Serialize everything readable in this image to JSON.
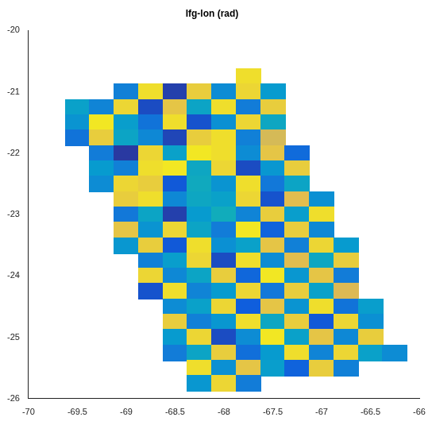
{
  "chart_data": {
    "type": "heatmap",
    "title": "Ifg-lon (rad)",
    "x": [
      -69.75,
      -69.5,
      -69.25,
      -69.0,
      -68.75,
      -68.5,
      -68.25,
      -68.0,
      -67.75,
      -67.5,
      -67.25,
      -67.0,
      -66.75,
      -66.5,
      -66.25
    ],
    "y": [
      -20.75,
      -21.0,
      -21.25,
      -21.5,
      -21.75,
      -22.0,
      -22.25,
      -22.5,
      -22.75,
      -23.0,
      -23.25,
      -23.5,
      -23.75,
      -24.0,
      -24.25,
      -24.5,
      -24.75,
      -25.0,
      -25.25,
      -25.5,
      -25.75
    ],
    "cells": [
      [
        null,
        null,
        null,
        null,
        null,
        null,
        null,
        null,
        2.8,
        null,
        null,
        null,
        null,
        null,
        null
      ],
      [
        null,
        null,
        null,
        -1.5,
        2.8,
        -2.8,
        2.6,
        -1.2,
        2.7,
        -0.8,
        null,
        null,
        null,
        null,
        null
      ],
      [
        null,
        -0.6,
        -1.4,
        2.7,
        -2.6,
        2.5,
        -0.5,
        2.8,
        -1.6,
        2.6,
        null,
        null,
        null,
        null,
        null
      ],
      [
        null,
        -1.0,
        2.9,
        -0.7,
        -1.8,
        2.8,
        -2.5,
        -1.1,
        2.7,
        -0.4,
        null,
        null,
        null,
        null,
        null
      ],
      [
        null,
        -1.8,
        2.6,
        -0.5,
        -1.3,
        -2.7,
        2.6,
        2.8,
        -1.5,
        2.2,
        null,
        null,
        null,
        null,
        null
      ],
      [
        null,
        null,
        -1.6,
        -2.9,
        2.7,
        -0.6,
        2.9,
        2.8,
        -1.2,
        2.5,
        -2.0,
        null,
        null,
        null,
        null
      ],
      [
        null,
        null,
        -0.8,
        -1.5,
        2.8,
        2.9,
        -0.4,
        2.7,
        -2.6,
        -0.9,
        2.6,
        null,
        null,
        null,
        null
      ],
      [
        null,
        null,
        -1.2,
        2.7,
        2.6,
        -2.4,
        -0.3,
        -1.0,
        2.8,
        -1.7,
        -0.5,
        null,
        null,
        null,
        null
      ],
      [
        null,
        null,
        null,
        2.6,
        2.8,
        -1.3,
        -0.4,
        -0.6,
        2.7,
        -2.5,
        2.4,
        -1.1,
        null,
        null,
        null
      ],
      [
        null,
        null,
        null,
        -1.7,
        -0.5,
        -2.8,
        -0.8,
        -0.2,
        -1.4,
        2.6,
        -0.7,
        2.8,
        null,
        null,
        null
      ],
      [
        null,
        null,
        null,
        2.5,
        -1.0,
        2.7,
        -0.5,
        -1.6,
        2.9,
        -2.2,
        2.6,
        -1.3,
        null,
        null,
        null
      ],
      [
        null,
        null,
        null,
        -0.9,
        2.6,
        -2.4,
        2.8,
        -1.1,
        -0.6,
        2.5,
        -1.5,
        2.7,
        -0.8,
        null,
        null
      ],
      [
        null,
        null,
        null,
        null,
        -1.5,
        -0.7,
        2.7,
        -2.6,
        2.8,
        -1.2,
        2.4,
        -0.4,
        2.6,
        null,
        null
      ],
      [
        null,
        null,
        null,
        null,
        2.7,
        -1.3,
        -0.5,
        2.6,
        -2.1,
        2.9,
        -0.9,
        2.5,
        -1.6,
        null,
        null
      ],
      [
        null,
        null,
        null,
        null,
        -2.5,
        2.8,
        -1.4,
        -0.8,
        2.7,
        -1.7,
        2.6,
        -0.6,
        2.3,
        null,
        null
      ],
      [
        null,
        null,
        null,
        null,
        null,
        -1.2,
        -0.6,
        2.7,
        -2.3,
        2.5,
        -1.0,
        2.8,
        -1.8,
        -0.7,
        null
      ],
      [
        null,
        null,
        null,
        null,
        null,
        2.6,
        -1.5,
        -0.9,
        2.8,
        -0.4,
        2.6,
        -2.4,
        2.7,
        -1.1,
        null
      ],
      [
        null,
        null,
        null,
        null,
        null,
        -0.8,
        2.7,
        -2.6,
        -1.2,
        2.9,
        -0.6,
        2.5,
        -1.3,
        2.6,
        null
      ],
      [
        null,
        null,
        null,
        null,
        null,
        -1.6,
        -0.5,
        2.6,
        -1.9,
        -0.8,
        2.8,
        -1.4,
        2.7,
        -0.6,
        -1.2
      ],
      [
        null,
        null,
        null,
        null,
        null,
        null,
        2.8,
        -1.1,
        2.5,
        -0.7,
        -2.2,
        2.6,
        -1.5,
        null,
        null
      ],
      [
        null,
        null,
        null,
        null,
        null,
        null,
        -0.9,
        2.7,
        -1.6,
        null,
        null,
        null,
        null,
        null,
        null
      ]
    ],
    "clim": [
      -3.1416,
      3.1416
    ],
    "xlim": [
      -70,
      -66
    ],
    "ylim": [
      -26,
      -20
    ],
    "xticks": [
      -70,
      -69.5,
      -69,
      -68.5,
      -68,
      -67.5,
      -67,
      -66.5,
      -66
    ],
    "yticks": [
      -26,
      -25,
      -24,
      -23,
      -22,
      -21,
      -20
    ],
    "grid": false
  }
}
